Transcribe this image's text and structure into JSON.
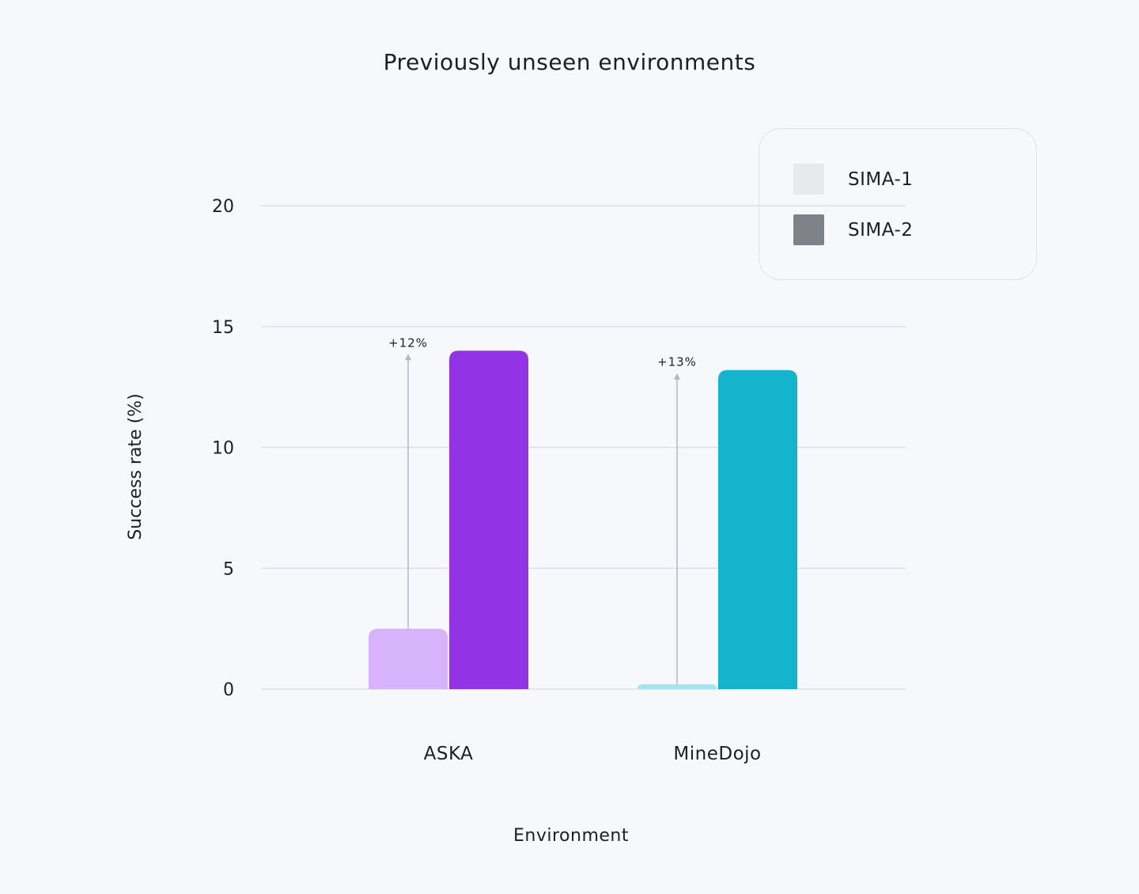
{
  "chart_data": {
    "type": "bar",
    "title": "Previously unseen environments",
    "xlabel": "Environment",
    "ylabel": "Success rate (%)",
    "ylim": [
      0,
      20
    ],
    "yticks": [
      "0",
      "5",
      "10",
      "15",
      "20"
    ],
    "grid": true,
    "legend_position": "top-right",
    "categories": [
      "ASKA",
      "MineDojo"
    ],
    "series": [
      {
        "name": "SIMA-1",
        "values": [
          2.5,
          0.2
        ],
        "colors": [
          "#d7b3fb",
          "#a3e6f2"
        ],
        "legend_color": "#e8e9ed"
      },
      {
        "name": "SIMA-2",
        "values": [
          14.0,
          13.2
        ],
        "colors": [
          "#9333e6",
          "#13b4cc"
        ],
        "legend_color": "#7f8289"
      }
    ],
    "annotations": [
      "+12%",
      "+13%"
    ]
  }
}
